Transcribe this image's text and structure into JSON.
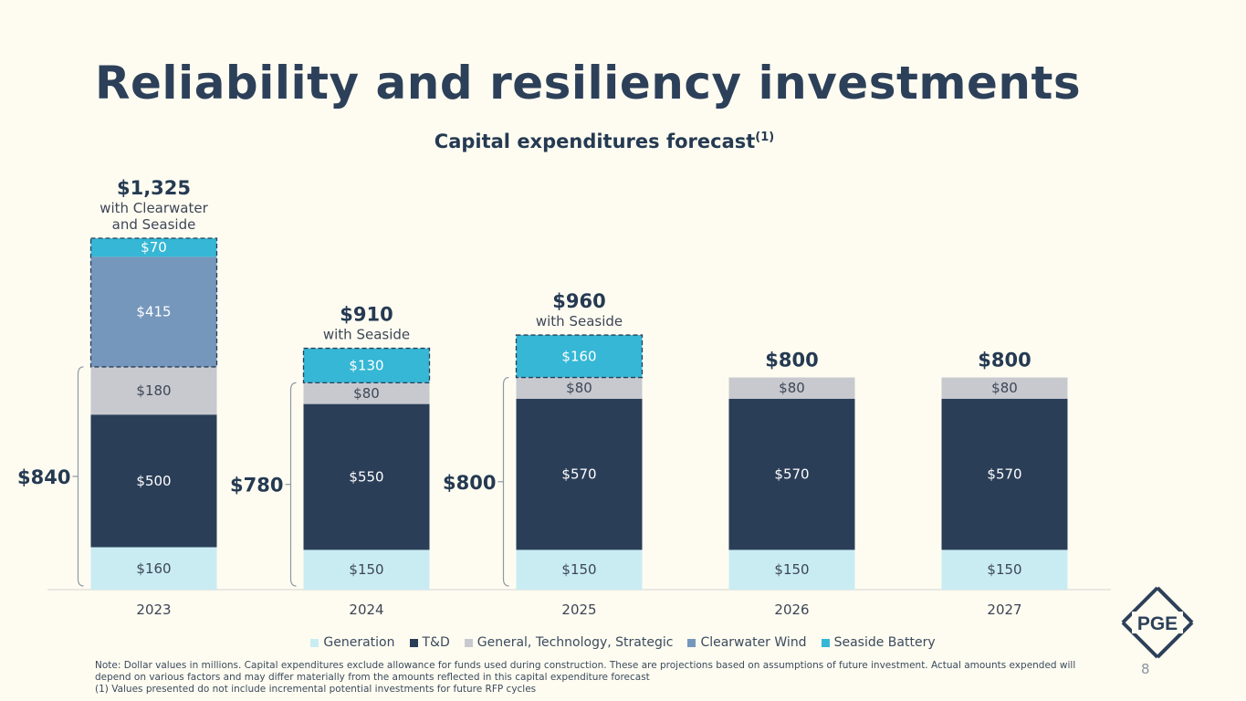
{
  "slide": {
    "title": "Reliability and resiliency investments",
    "subtitle": "Capital expenditures forecast",
    "subtitle_superscript": "(1)",
    "page_number": "8",
    "logo_text": "PGE",
    "note_line1": "Note: Dollar values in millions. Capital expenditures exclude allowance for funds used during construction. These are projections based on assumptions of future investment. Actual amounts expended will depend on various factors and may differ materially from the amounts reflected in this capital expenditure forecast",
    "note_line2": "(1) Values presented do not include incremental potential investments for future RFP cycles"
  },
  "chart_data": {
    "type": "bar",
    "stacked": true,
    "title": "Capital expenditures forecast(1)",
    "units": "$ millions",
    "categories": [
      "2023",
      "2024",
      "2025",
      "2026",
      "2027"
    ],
    "series": [
      {
        "name": "Generation",
        "color": "#c9ecf3",
        "values": [
          160,
          150,
          150,
          150,
          150
        ],
        "labels": [
          "$160",
          "$150",
          "$150",
          "$150",
          "$150"
        ]
      },
      {
        "name": "T&D",
        "color": "#2b3e58",
        "values": [
          500,
          550,
          570,
          570,
          570
        ],
        "labels": [
          "$500",
          "$550",
          "$570",
          "$570",
          "$570"
        ]
      },
      {
        "name": "General, Technology, Strategic",
        "color": "#c7c9cf",
        "values": [
          180,
          80,
          80,
          80,
          80
        ],
        "labels": [
          "$180",
          "$80",
          "$80",
          "$80",
          "$80"
        ]
      },
      {
        "name": "Clearwater Wind",
        "color": "#7597bc",
        "values": [
          415,
          0,
          0,
          0,
          0
        ],
        "labels": [
          "$415",
          "",
          "",
          "",
          ""
        ]
      },
      {
        "name": "Seaside Battery",
        "color": "#35b7d5",
        "values": [
          70,
          130,
          160,
          0,
          0
        ],
        "labels": [
          "$70",
          "$130",
          "$160",
          "",
          ""
        ]
      }
    ],
    "dashed_series": [
      "Clearwater Wind",
      "Seaside Battery"
    ],
    "ylim": [
      0,
      1325
    ],
    "legend_position": "bottom",
    "grid": false,
    "total_labels": [
      {
        "category": "2023",
        "total": "$1,325",
        "note": "with Clearwater and Seaside",
        "note_lines": [
          "with Clearwater",
          "and Seaside"
        ]
      },
      {
        "category": "2024",
        "total": "$910",
        "note": "with Seaside",
        "note_lines": [
          "with Seaside"
        ]
      },
      {
        "category": "2025",
        "total": "$960",
        "note": "with Seaside",
        "note_lines": [
          "with Seaside"
        ]
      },
      {
        "category": "2026",
        "total": "$800",
        "note": "",
        "note_lines": []
      },
      {
        "category": "2027",
        "total": "$800",
        "note": "",
        "note_lines": []
      }
    ],
    "base_brackets": [
      {
        "category": "2023",
        "label": "$840"
      },
      {
        "category": "2024",
        "label": "$780"
      },
      {
        "category": "2025",
        "label": "$800"
      }
    ]
  }
}
